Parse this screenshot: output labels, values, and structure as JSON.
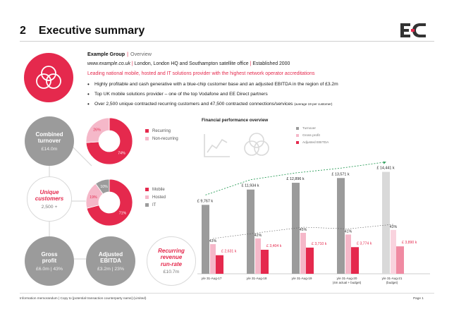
{
  "page": {
    "number": "2",
    "title": "Executive summary",
    "footer": "Information memorandum | Copy to [potential transaction counterparty name] (Limited)",
    "page_label": "Page 1"
  },
  "colors": {
    "accent": "#e5294d",
    "gray": "#9b9b9b",
    "light_pink": "#f5b8c9",
    "light_gray": "#d9d9d9"
  },
  "company": {
    "name": "Example Group",
    "section": "Overview",
    "website": "www.example.co.uk",
    "location": "London, London HQ and Southampton satellite office",
    "established": "Established 2000",
    "tagline": "Leading national mobile, hosted and IT solutions provider with the highest network operator accreditations",
    "bullets": [
      "Highly profitable and cash generative with a blue-chip customer base and an adjusted EBITDA in the region of £3.2m",
      "Top UK mobile solutions provider – one of the top Vodafone and EE Direct partners"
    ],
    "bullet3_main": "Over 2,500 unique contracted recurring customers and 47,500 contracted connections/services",
    "bullet3_note": "(average 19 per customer)"
  },
  "kpis": {
    "turnover_title_1": "Combined",
    "turnover_title_2": "turnover",
    "turnover_value": "£14.0m",
    "customers_title_1": "Unique",
    "customers_title_2": "customers",
    "customers_value": "2,500 +",
    "gross_title": "Gross",
    "gross_title_2": "profit",
    "gross_value": "£6.0m | 43%",
    "ebitda_title": "Adjusted",
    "ebitda_title_2": "EBITDA",
    "ebitda_value": "£3.2m | 23%",
    "recurring_title_1": "Recurring",
    "recurring_title_2": "revenue",
    "recurring_title_3": "run-rate",
    "recurring_value": "£10.7m"
  },
  "icons": {
    "logo": "ec-logo",
    "hero": "overlapping-circles-icon",
    "chart": "line-chart-icon",
    "circles": "venn-circles-icon"
  },
  "chart_data": [
    {
      "type": "pie",
      "categories": [
        "Recurring",
        "Non-recurring"
      ],
      "values": [
        74,
        26
      ],
      "labels": [
        "74%",
        "26%"
      ],
      "colors": [
        "#e5294d",
        "#f5b8c9"
      ]
    },
    {
      "type": "pie",
      "categories": [
        "Mobile",
        "Hosted",
        "IT"
      ],
      "values": [
        71,
        19,
        10
      ],
      "labels": [
        "71%",
        "19%",
        "10%"
      ],
      "colors": [
        "#e5294d",
        "#f5b8c9",
        "#9b9b9b"
      ]
    },
    {
      "type": "bar",
      "title": "Financial performance overview",
      "categories": [
        "y/e 31-Aug-17",
        "y/e 31-Aug-18",
        "y/e 31-Aug-19",
        "y/e 31-Aug-20",
        "y/e 31-Aug-21"
      ],
      "category_notes": [
        "",
        "",
        "",
        "(4m actual + budget)",
        "(budget)"
      ],
      "series": [
        {
          "name": "Turnover",
          "values": [
            9767,
            11934,
            12896,
            13571,
            14441
          ],
          "labels": [
            "£ 9,767 k",
            "£ 11,934 k",
            "£ 12,896 k",
            "£ 13,571 k",
            "£ 14,441 k"
          ]
        },
        {
          "name": "Gross profit",
          "values": [
            4199,
            5012,
            5803,
            5564,
            6209
          ],
          "labels": [
            "43%",
            "42%",
            "45%",
            "41%",
            "43%"
          ]
        },
        {
          "name": "Adjusted EBITDA",
          "values": [
            2631,
            3404,
            3710,
            3774,
            3890
          ],
          "labels": [
            "£ 2,631 k",
            "£ 3,404 k",
            "£ 3,710 k",
            "£ 3,774 k",
            "£ 3,890 k"
          ]
        }
      ],
      "ylim": [
        0,
        16000
      ],
      "legend": "top-right"
    }
  ]
}
